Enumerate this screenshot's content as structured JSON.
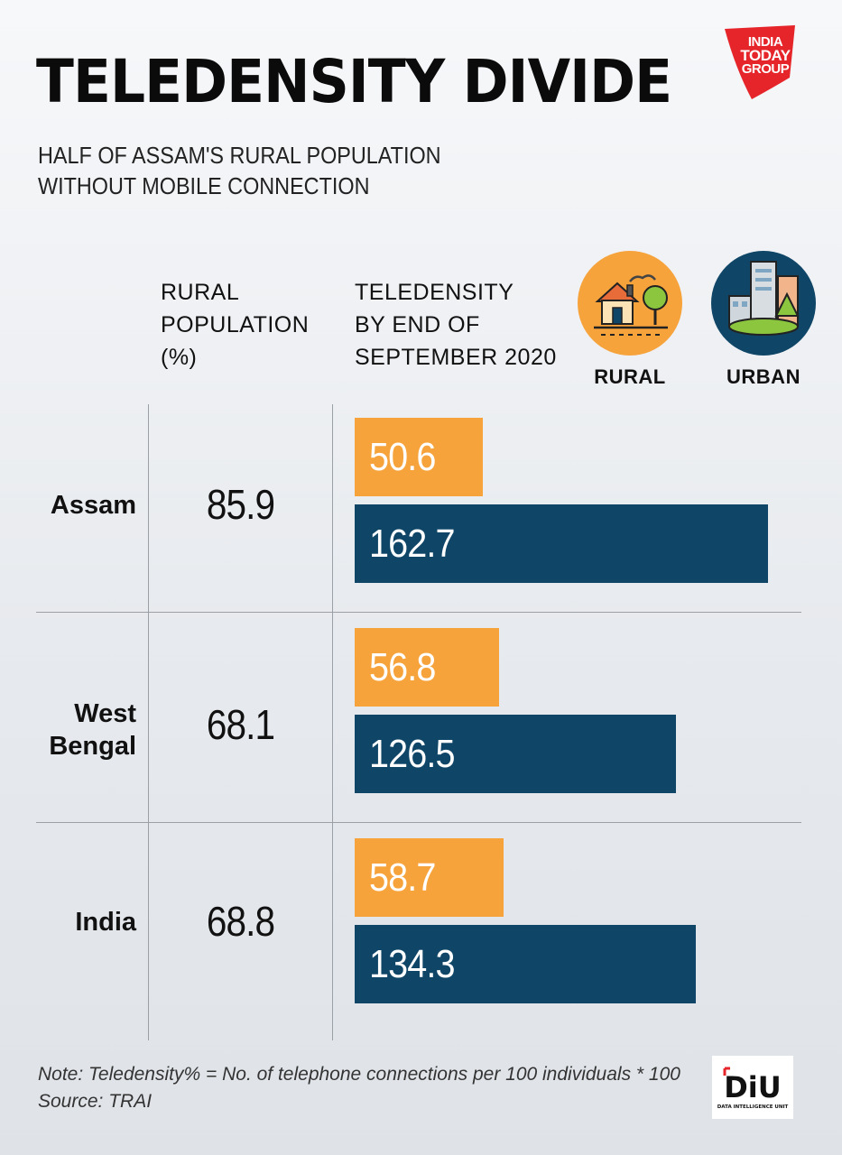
{
  "header": {
    "title": "TELEDENSITY DIVIDE",
    "subtitle_line1": "HALF OF ASSAM'S RURAL POPULATION",
    "subtitle_line2": "WITHOUT MOBILE CONNECTION"
  },
  "logo": {
    "line1": "INDIA",
    "line2": "TODAY",
    "line3": "GROUP",
    "color": "#e5252a"
  },
  "columns": {
    "rural_pop_line1": "RURAL",
    "rural_pop_line2": "POPULATION",
    "rural_pop_line3": "(%)",
    "teledensity_line1": "TELEDENSITY",
    "teledensity_line2": "BY END OF",
    "teledensity_line3": "SEPTEMBER 2020"
  },
  "legend": {
    "rural": {
      "label": "RURAL",
      "icon": "village-house-icon",
      "color": "#f7a33c"
    },
    "urban": {
      "label": "URBAN",
      "icon": "city-buildings-icon",
      "color": "#0f4566"
    }
  },
  "chart_data": {
    "type": "bar",
    "orientation": "horizontal",
    "categories": [
      "Assam",
      "West Bengal",
      "India"
    ],
    "category_lines": [
      [
        "Assam"
      ],
      [
        "West",
        "Bengal"
      ],
      [
        "India"
      ]
    ],
    "rural_population_pct": [
      "85.9",
      "68.1",
      "68.8"
    ],
    "series": [
      {
        "name": "RURAL",
        "color": "#f7a33c",
        "values": [
          50.6,
          56.8,
          58.7
        ],
        "labels": [
          "50.6",
          "56.8",
          "58.7"
        ]
      },
      {
        "name": "URBAN",
        "color": "#0f4566",
        "values": [
          162.7,
          126.5,
          134.3
        ],
        "labels": [
          "162.7",
          "126.5",
          "134.3"
        ]
      }
    ],
    "title": "TELEDENSITY DIVIDE",
    "xlabel": "",
    "ylabel": "",
    "grid": false,
    "legend": "top-right"
  },
  "footer": {
    "note": "Note: Teledensity% = No. of telephone connections per 100 individuals * 100",
    "source": "Source: TRAI",
    "diu_logo": "DiU",
    "diu_sub": "DATA INTELLIGENCE UNIT"
  }
}
